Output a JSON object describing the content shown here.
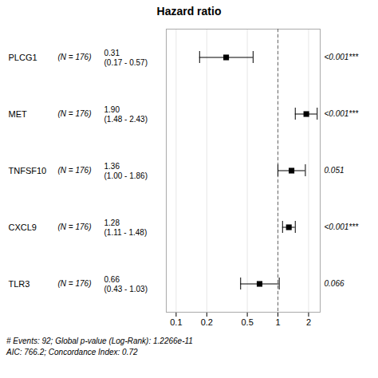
{
  "chart_data": {
    "type": "forest",
    "title": "Hazard ratio",
    "categories": [
      "PLCG1",
      "MET",
      "TNFSF10",
      "CXCL9",
      "TLR3"
    ],
    "values": [
      0.31,
      1.9,
      1.36,
      1.28,
      0.66
    ],
    "ci_low": [
      0.17,
      1.48,
      1.0,
      1.11,
      0.43
    ],
    "ci_high": [
      0.57,
      2.43,
      1.86,
      1.48,
      1.03
    ],
    "value_labels": [
      "0.31\n(0.17 - 0.57)",
      "1.90\n(1.48 - 2.43)",
      "1.36\n(1.00 - 1.86)",
      "1.28\n(1.11 - 1.48)",
      "0.66\n(0.43 - 1.03)"
    ],
    "n_labels": [
      "(N = 176)",
      "(N = 176)",
      "(N = 176)",
      "(N = 176)",
      "(N = 176)"
    ],
    "p_labels": [
      "<0.001***",
      "<0.001***",
      "0.051",
      "<0.001***",
      "0.066"
    ],
    "reference_line": 1,
    "xlim": [
      0.08,
      2.6
    ],
    "xticks": [
      0.1,
      0.2,
      0.5,
      1,
      2
    ],
    "log": "x",
    "grid": true,
    "color": "black",
    "annotations": [
      "# Events: 92; Global p-value (Log-Rank): 1.2266e-11",
      "AIC: 766.2; Concordance Index: 0.72"
    ]
  }
}
